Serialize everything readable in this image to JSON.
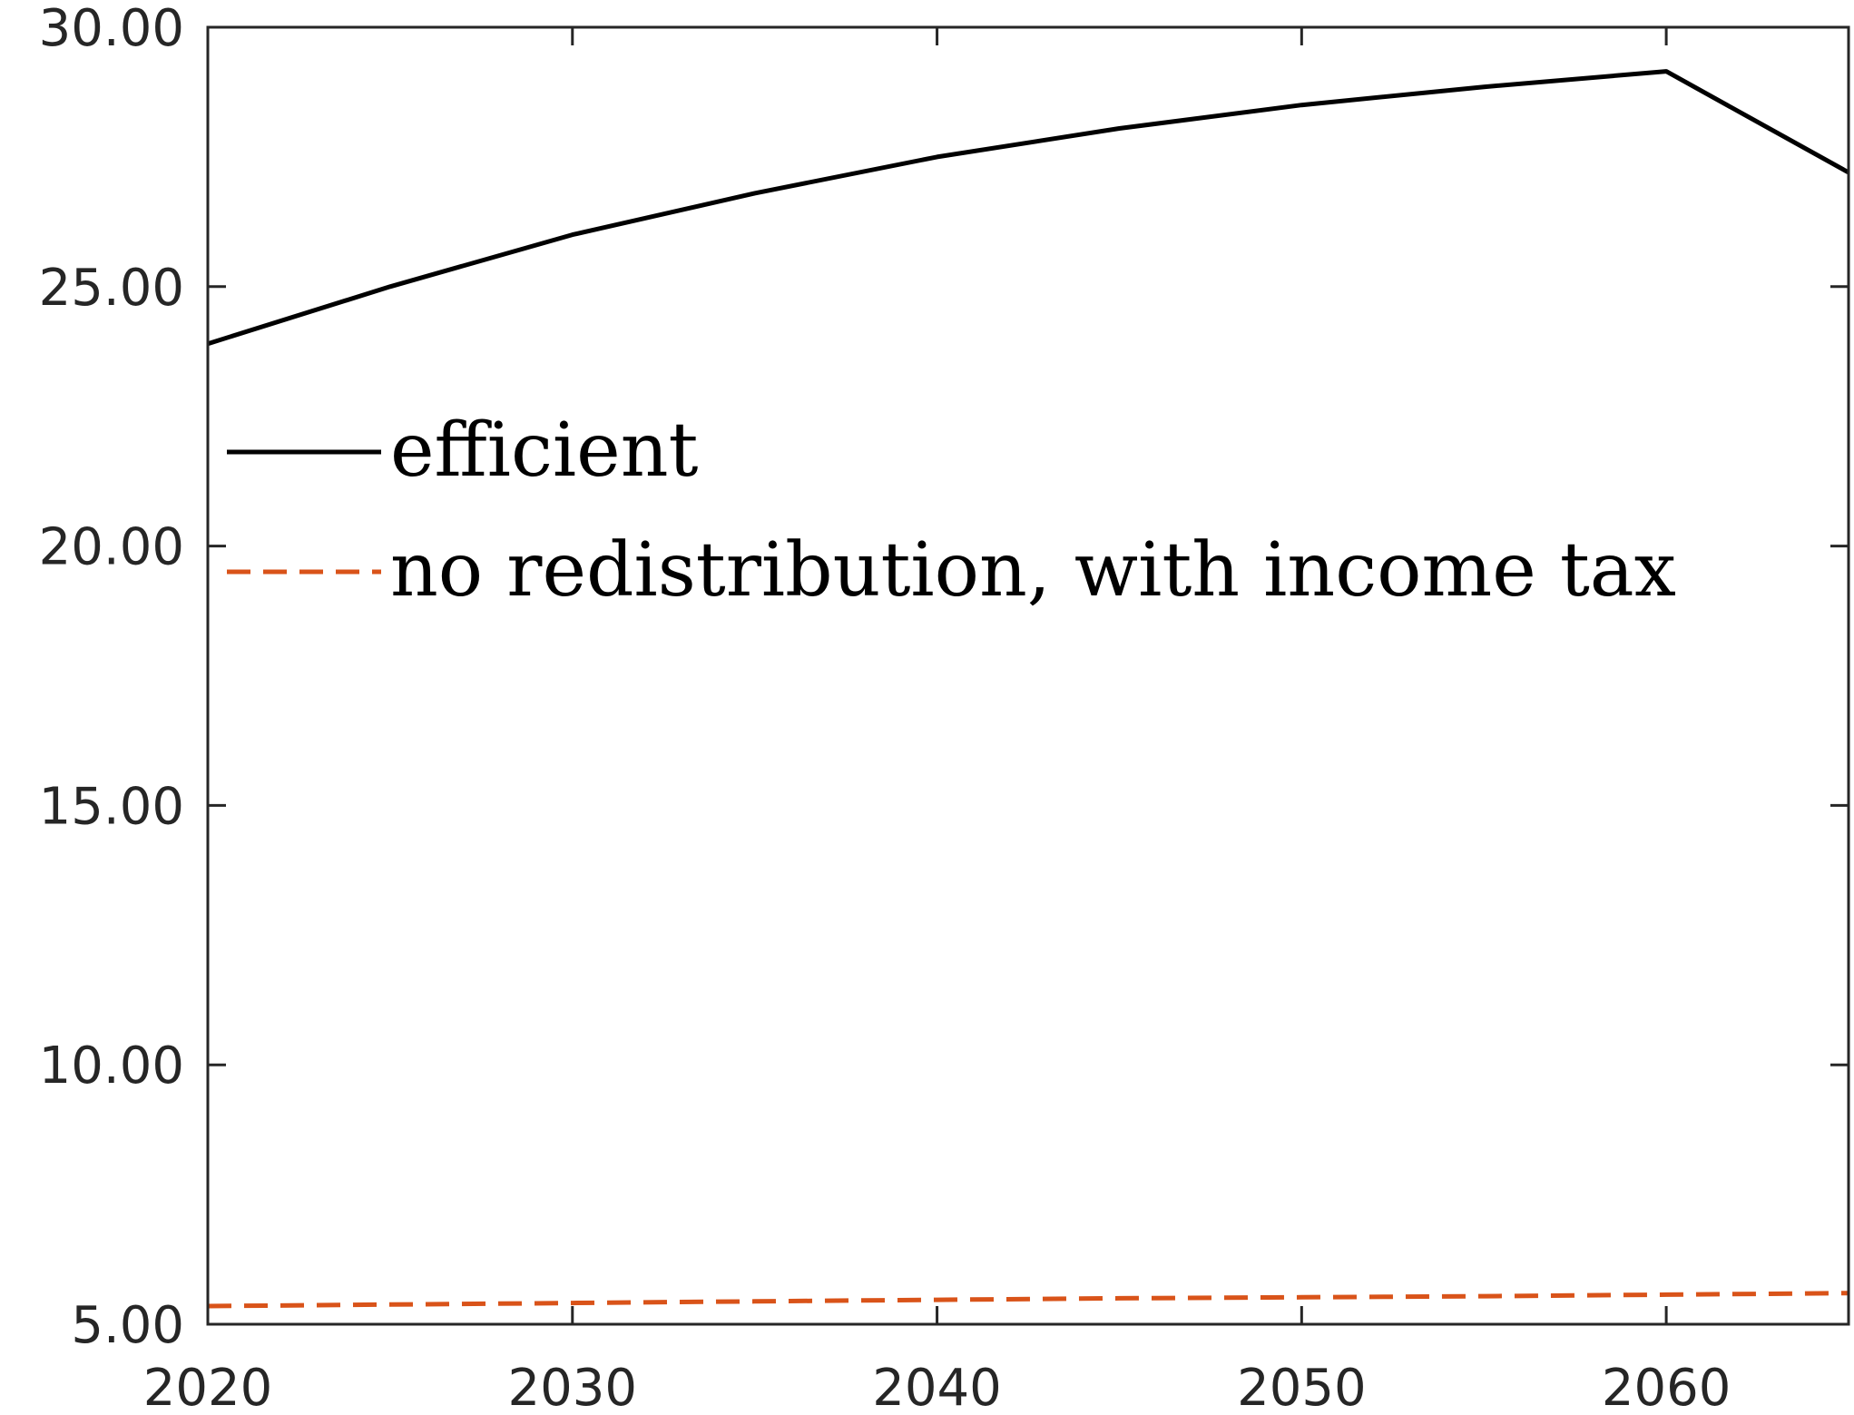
{
  "chart_data": {
    "type": "line",
    "title": "",
    "xlabel": "",
    "ylabel": "",
    "xlim": [
      2020,
      2065
    ],
    "ylim": [
      5,
      30
    ],
    "x_ticks": [
      2020,
      2030,
      2040,
      2050,
      2060
    ],
    "x_tick_labels": [
      "2020",
      "2030",
      "2040",
      "2050",
      "2060"
    ],
    "y_ticks": [
      5,
      10,
      15,
      20,
      25,
      30
    ],
    "y_tick_labels": [
      "5.00",
      "10.00",
      "15.00",
      "20.00",
      "25.00",
      "30.00"
    ],
    "grid": false,
    "legend_position": "center-left",
    "series": [
      {
        "name": "efficient",
        "color": "#000000",
        "style": "solid",
        "x": [
          2020,
          2025,
          2030,
          2035,
          2040,
          2045,
          2050,
          2055,
          2060,
          2065
        ],
        "values": [
          23.9,
          25.0,
          26.0,
          26.8,
          27.5,
          28.05,
          28.5,
          28.85,
          29.15,
          27.2
        ]
      },
      {
        "name": "no redistribution, with income tax",
        "color": "#D95319",
        "style": "dashed",
        "x": [
          2020,
          2025,
          2030,
          2035,
          2040,
          2045,
          2050,
          2055,
          2060,
          2065
        ],
        "values": [
          5.35,
          5.38,
          5.41,
          5.44,
          5.47,
          5.5,
          5.52,
          5.54,
          5.57,
          5.6
        ]
      }
    ]
  }
}
